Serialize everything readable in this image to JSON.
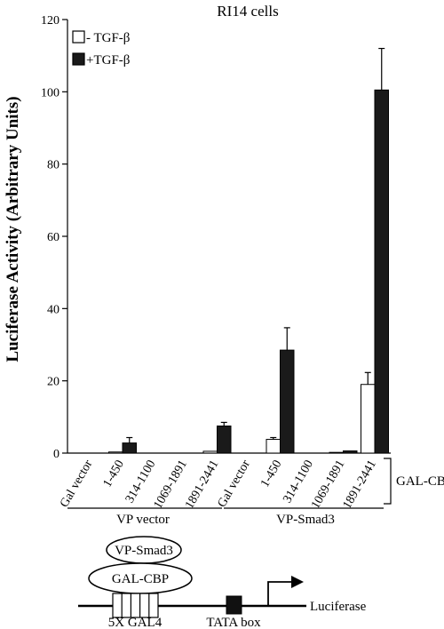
{
  "chart_data": {
    "type": "bar",
    "title": "RI14 cells",
    "ylabel": "Luciferase Activity (Arbitrary Units)",
    "ylim": [
      0,
      120
    ],
    "yticks": [
      0,
      20,
      40,
      60,
      80,
      100,
      120
    ],
    "categories": [
      "Gal vector",
      "1-450",
      "314-1100",
      "1069-1891",
      "1891-2441",
      "Gal vector",
      "1-450",
      "314-1100",
      "1069-1891",
      "1891-2441"
    ],
    "series": [
      {
        "name": "- TGF-β",
        "fill": "#ffffff",
        "values": [
          0,
          0.3,
          0,
          0,
          0.5,
          0,
          3.8,
          0,
          0.2,
          19
        ],
        "errors": [
          0,
          0,
          0,
          0,
          0,
          0,
          0.5,
          0,
          0,
          3.3
        ]
      },
      {
        "name": "+TGF-β",
        "fill": "#1a1a1a",
        "values": [
          0,
          2.8,
          0,
          0,
          7.5,
          0,
          28.5,
          0,
          0.6,
          100.5
        ],
        "errors": [
          0,
          1.5,
          0,
          0,
          1.0,
          0,
          6.2,
          0,
          0,
          11.5
        ]
      }
    ],
    "groups": [
      {
        "label": "VP vector",
        "count": 5
      },
      {
        "label": "VP-Smad3",
        "count": 5
      }
    ],
    "bracket_label": "GAL-CBP"
  },
  "diagram": {
    "vp_smad3": "VP-Smad3",
    "gal_cbp": "GAL-CBP",
    "gal4": "5X GAL4",
    "tata": "TATA box",
    "reporter": "Luciferase"
  }
}
